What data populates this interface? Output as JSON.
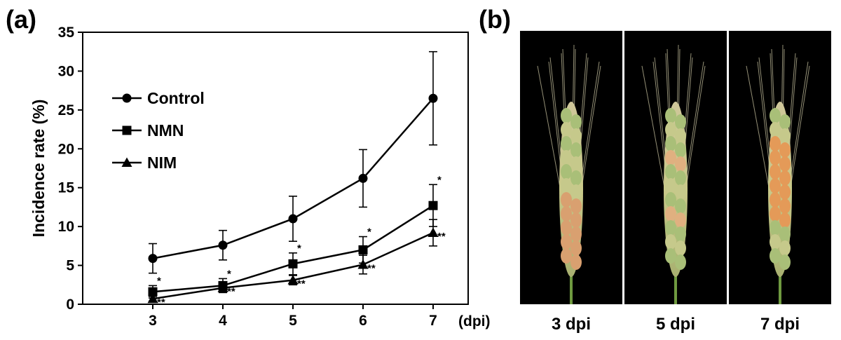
{
  "panel_a_label": "(a)",
  "panel_b_label": "(b)",
  "chart_data": {
    "type": "line",
    "title": "",
    "xlabel": "(dpi)",
    "ylabel": "Incidence rate (%)",
    "x": [
      3,
      4,
      5,
      6,
      7
    ],
    "xlim": [
      2,
      7.5
    ],
    "ylim": [
      0,
      35
    ],
    "yticks": [
      0,
      5,
      10,
      15,
      20,
      25,
      30,
      35
    ],
    "legend_position": "upper-left",
    "series": [
      {
        "name": "Control",
        "marker": "circle",
        "values": [
          5.9,
          7.6,
          11.0,
          16.2,
          26.5
        ],
        "errors": [
          1.9,
          1.9,
          2.9,
          3.7,
          6.0
        ],
        "sig": [
          "",
          "",
          "",
          "",
          ""
        ]
      },
      {
        "name": "NMN",
        "marker": "square",
        "values": [
          1.6,
          2.4,
          5.2,
          7.0,
          12.7
        ],
        "errors": [
          0.8,
          0.9,
          1.4,
          1.7,
          2.7
        ],
        "sig": [
          "*",
          "*",
          "*",
          "*",
          "*"
        ]
      },
      {
        "name": "NIM",
        "marker": "triangle",
        "values": [
          0.7,
          2.1,
          3.1,
          5.1,
          9.2
        ],
        "errors": [
          0.3,
          0.5,
          0.6,
          1.2,
          1.7
        ],
        "sig": [
          "**",
          "**",
          "**",
          "**",
          "**"
        ]
      }
    ]
  },
  "photos": [
    {
      "label": "3 dpi"
    },
    {
      "label": "5 dpi"
    },
    {
      "label": "7 dpi"
    }
  ]
}
